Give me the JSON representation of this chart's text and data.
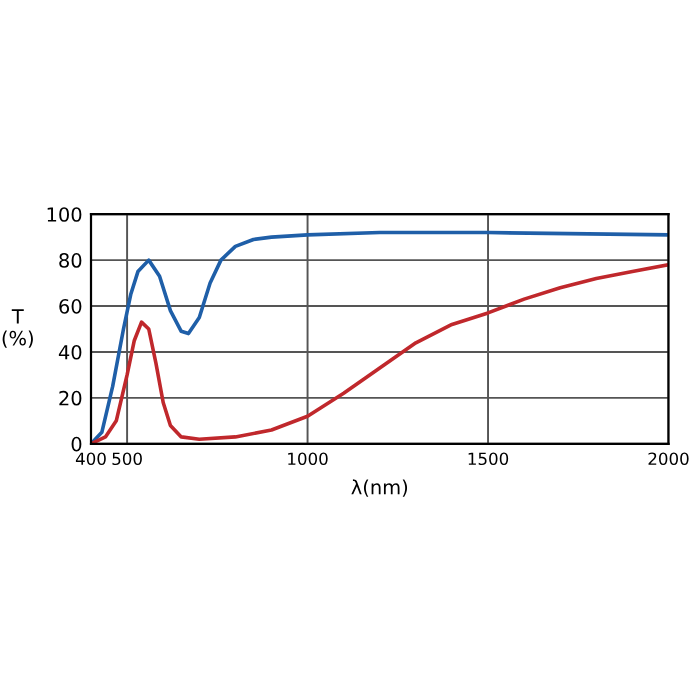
{
  "chart_data": {
    "type": "line",
    "xlabel": "λ(nm)",
    "ylabel": "T\n(%)",
    "xlim": [
      400,
      2000
    ],
    "xticks": [
      400,
      500,
      1000,
      1500,
      2000
    ],
    "ylim": [
      0,
      100
    ],
    "yticks": [
      0,
      20,
      40,
      60,
      80,
      100
    ],
    "grid": true,
    "series": [
      {
        "color": "#1f5fa8",
        "x": [
          400,
          430,
          460,
          490,
          510,
          530,
          560,
          590,
          620,
          650,
          670,
          700,
          730,
          760,
          800,
          850,
          900,
          1000,
          1200,
          1500,
          2000
        ],
        "values": [
          0,
          5,
          25,
          50,
          65,
          75,
          80,
          73,
          58,
          49,
          48,
          55,
          70,
          80,
          86,
          89,
          90,
          91,
          92,
          92,
          91
        ]
      },
      {
        "color": "#c0282c",
        "x": [
          400,
          440,
          470,
          500,
          520,
          540,
          560,
          580,
          600,
          620,
          650,
          700,
          800,
          900,
          1000,
          1100,
          1200,
          1300,
          1400,
          1500,
          1600,
          1700,
          1800,
          1900,
          2000
        ],
        "values": [
          0,
          3,
          10,
          30,
          45,
          53,
          50,
          35,
          18,
          8,
          3,
          2,
          3,
          6,
          12,
          22,
          33,
          44,
          52,
          57,
          63,
          68,
          72,
          75,
          78
        ]
      }
    ]
  }
}
